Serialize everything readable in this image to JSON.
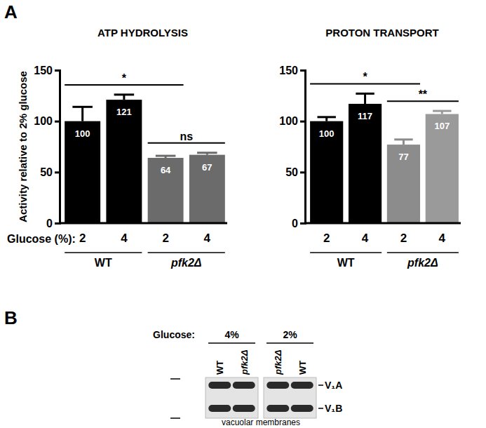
{
  "panels": [
    "A",
    "B"
  ],
  "chart_data": [
    {
      "type": "bar",
      "title": "ATP HYDROLYSIS",
      "y_label": "Activity relative to 2% glucose",
      "x_label": "Glucose (%):",
      "categories": [
        "2",
        "4",
        "2",
        "4"
      ],
      "groups": [
        {
          "label": "WT",
          "categories": [
            0,
            1
          ]
        },
        {
          "label": "pfk2Δ",
          "categories": [
            2,
            3
          ]
        }
      ],
      "values": [
        100,
        121,
        64,
        67
      ],
      "errors": [
        14,
        5,
        2,
        2
      ],
      "colors": [
        "#000000",
        "#000000",
        "#6b6b6b",
        "#6b6b6b"
      ],
      "ylim": [
        0,
        150
      ],
      "yticks": [
        0,
        50,
        100,
        150
      ],
      "data_labels": true,
      "comparisons": [
        {
          "label": "*",
          "categories": [
            0,
            2
          ]
        },
        {
          "label": "ns",
          "categories": [
            2,
            3
          ]
        }
      ]
    },
    {
      "type": "bar",
      "title": "PROTON TRANSPORT",
      "categories": [
        "2",
        "4",
        "2",
        "4"
      ],
      "groups": [
        {
          "label": "WT",
          "categories": [
            0,
            1
          ]
        },
        {
          "label": "pfk2Δ",
          "categories": [
            2,
            3
          ]
        }
      ],
      "values": [
        100,
        117,
        77,
        107
      ],
      "errors": [
        4,
        10,
        5,
        3
      ],
      "colors": [
        "#000000",
        "#000000",
        "#8c8c8c",
        "#9a9a9a"
      ],
      "ylim": [
        0,
        150
      ],
      "yticks": [
        0,
        50,
        100,
        150
      ],
      "data_labels": true,
      "comparisons": [
        {
          "label": "*",
          "categories": [
            0,
            2
          ]
        },
        {
          "label": "**",
          "categories": [
            2,
            3
          ]
        }
      ]
    }
  ],
  "blot": {
    "label": "Glucose:",
    "conditions": [
      {
        "glucose": "4%",
        "lanes": [
          "WT",
          "pfk2Δ"
        ]
      },
      {
        "glucose": "2%",
        "lanes": [
          "pfk2Δ",
          "WT"
        ]
      }
    ],
    "bands": [
      "V₁A",
      "V₁B"
    ],
    "caption": "vacuolar membranes"
  }
}
